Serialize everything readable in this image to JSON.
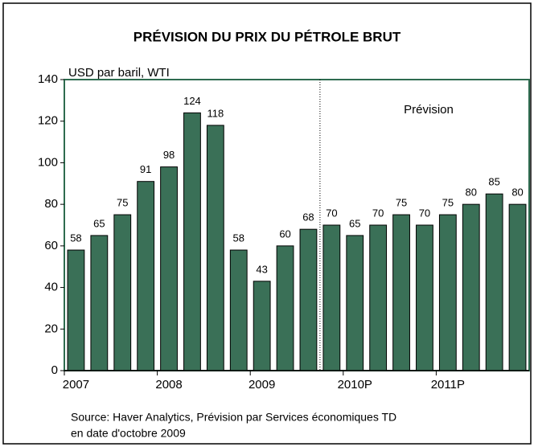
{
  "chart_data": {
    "type": "bar",
    "title": "PRÉVISION DU PRIX DU PÉTROLE BRUT",
    "y_axis_label": "USD par baril, WTI",
    "annotation": "Prévision",
    "divider_index": 11,
    "source": [
      "Source: Haver Analytics, Prévision par Services économiques TD",
      "en date d'octobre 2009"
    ],
    "categories": [
      "2007",
      null,
      null,
      null,
      "2008",
      null,
      null,
      null,
      "2009",
      null,
      null,
      null,
      "2010P",
      null,
      null,
      null,
      "2011P",
      null,
      null,
      null
    ],
    "values": [
      58,
      65,
      75,
      91,
      98,
      124,
      118,
      58,
      43,
      60,
      68,
      70,
      65,
      70,
      75,
      70,
      75,
      80,
      85,
      80
    ],
    "color": "#3a7057",
    "ylim": [
      0,
      140
    ],
    "yticks": [
      0,
      20,
      40,
      60,
      80,
      100,
      120,
      140
    ],
    "grid": false
  }
}
